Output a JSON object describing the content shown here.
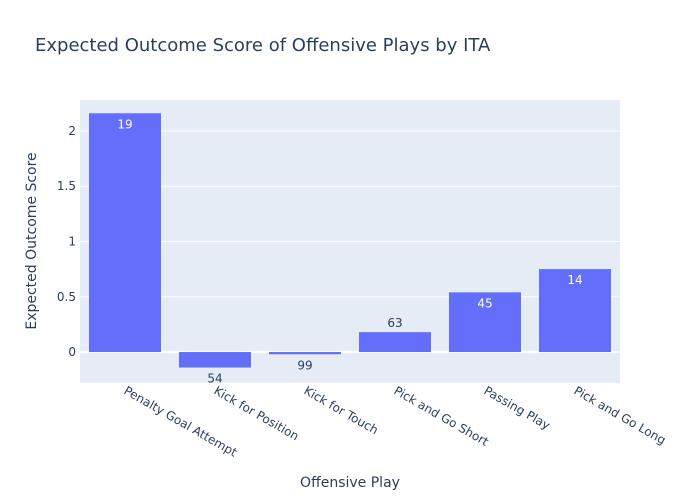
{
  "chart_data": {
    "type": "bar",
    "title": "Expected Outcome Score of Offensive Plays by ITA",
    "xlabel": "Offensive Play",
    "ylabel": "Expected Outcome Score",
    "categories": [
      "Penalty Goal Attempt",
      "Kick for Position",
      "Kick for Touch",
      "Pick and Go Short",
      "Passing Play",
      "Pick and Go Long"
    ],
    "values": [
      2.16,
      -0.14,
      -0.02,
      0.18,
      0.54,
      0.75
    ],
    "bar_labels": [
      "19",
      "54",
      "99",
      "63",
      "45",
      "14"
    ],
    "yticks": [
      0,
      0.5,
      1,
      1.5,
      2
    ],
    "ytick_labels": [
      "0",
      "0.5",
      "1",
      "1.5",
      "2"
    ],
    "ylim": [
      -0.28,
      2.28
    ],
    "grid": true,
    "colors": {
      "bar": "#636efa",
      "plot_bg": "#e5ecf6",
      "text": "#2a3f5f",
      "grid": "#ffffff"
    }
  }
}
